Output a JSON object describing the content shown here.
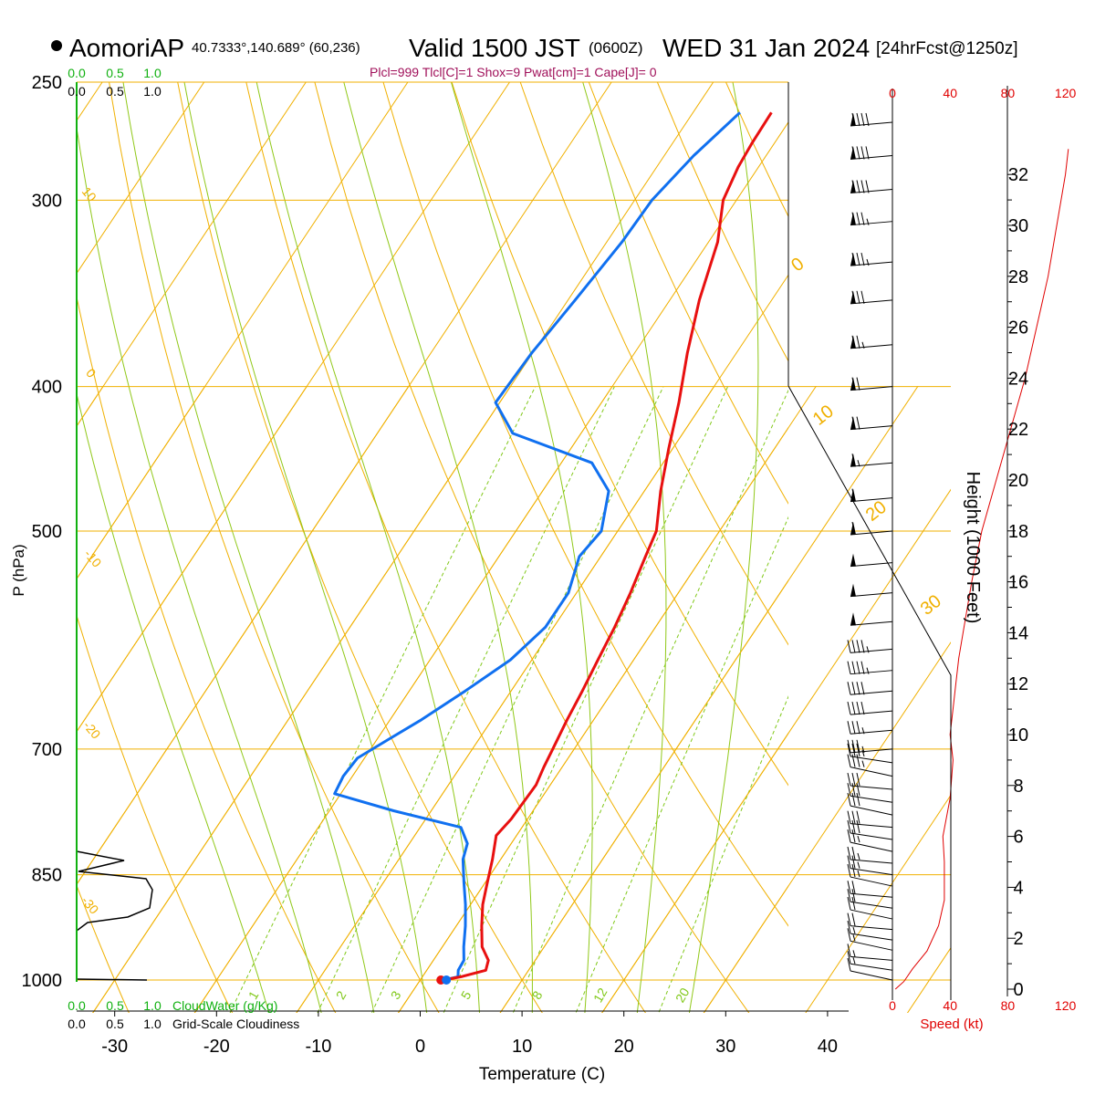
{
  "header": {
    "station": "AomoriAP",
    "coords": "40.7333°,140.689° (60,236)",
    "valid_label": "Valid 1500 JST",
    "valid_utc": "(0600Z)",
    "valid_date": "WED 31 Jan 2024",
    "forecast": "[24hrFcst@1250z]",
    "indices": "Plcl=999 Tlcl[C]=1 Shox=9 Pwat[cm]=1 Cape[J]= 0"
  },
  "colors": {
    "isotherm": "#f0b000",
    "dry_adiabat": "#f0b000",
    "moist_adiabat": "#90c818",
    "mixing_ratio": "#80c818",
    "temperature": "#e81010",
    "dewpoint": "#1070f0",
    "cloud_scale": "#10b010",
    "speed_scale": "#e00000"
  },
  "chart_data": {
    "type": "line",
    "title": "AomoriAP Valid 1500 JST (0600Z) WED 31 Jan 2024",
    "xlabel": "Temperature (C)",
    "ylabel": "P (hPa)",
    "y2label": "Height (1000 Feet)",
    "x_ticks": [
      "-30",
      "-20",
      "-10",
      "0",
      "10",
      "20",
      "30",
      "40"
    ],
    "p_ticks": [
      "250",
      "300",
      "400",
      "500",
      "700",
      "850",
      "1000"
    ],
    "height_ticks": [
      "0",
      "2",
      "4",
      "6",
      "8",
      "10",
      "12",
      "14",
      "16",
      "18",
      "20",
      "22",
      "24",
      "26",
      "28",
      "30",
      "32"
    ],
    "speed_ticks": [
      "0",
      "40",
      "80",
      "120"
    ],
    "speed_label": "Speed (kt)",
    "cloud_ticks": [
      "0.0",
      "0.5",
      "1.0"
    ],
    "cloudwater_label": "CloudWater (g/Kg)",
    "cloudiness_label": "Grid-Scale Cloudiness",
    "isotherm_labels": [
      "0",
      "10",
      "20",
      "30"
    ],
    "dry_adiabat_labels": [
      "10",
      "0",
      "-10",
      "-20",
      "-30"
    ],
    "mixing_ratio_labels": [
      "1",
      "2",
      "3",
      "5",
      "8",
      "12",
      "20"
    ],
    "temperature": {
      "name": "Temperature",
      "p": [
        1000,
        995,
        985,
        970,
        950,
        920,
        890,
        860,
        830,
        800,
        780,
        760,
        740,
        720,
        700,
        670,
        640,
        610,
        580,
        550,
        520,
        500,
        470,
        440,
        410,
        380,
        350,
        320,
        300,
        285,
        275,
        262
      ],
      "t": [
        2.3,
        3.8,
        5.8,
        5.4,
        3.9,
        2.5,
        1.2,
        0.2,
        -0.8,
        -2.0,
        -1.6,
        -1.5,
        -1.4,
        -1.8,
        -2.1,
        -2.6,
        -3.0,
        -3.5,
        -4.0,
        -4.7,
        -5.6,
        -6.2,
        -8.4,
        -10.4,
        -12.4,
        -14.8,
        -17.1,
        -19.1,
        -21.3,
        -22.0,
        -22.2,
        -22.3
      ]
    },
    "dewpoint": {
      "name": "Dewpoint",
      "p": [
        1000,
        995,
        985,
        970,
        950,
        920,
        890,
        860,
        830,
        810,
        790,
        770,
        750,
        730,
        710,
        690,
        670,
        640,
        610,
        580,
        550,
        520,
        500,
        470,
        450,
        430,
        410,
        380,
        350,
        320,
        300,
        280,
        262
      ],
      "t": [
        2.3,
        3.5,
        3.1,
        3.0,
        2.1,
        0.9,
        -0.5,
        -2.1,
        -3.7,
        -4.3,
        -6.0,
        -13.7,
        -20.6,
        -20.9,
        -20.7,
        -18.9,
        -17.0,
        -14.5,
        -12.1,
        -10.8,
        -10.8,
        -12.1,
        -11.6,
        -13.5,
        -17.0,
        -26.7,
        -30.4,
        -30.1,
        -29.3,
        -28.5,
        -28.3,
        -27.1,
        -25.4
      ]
    },
    "wind_barbs_p": [
      1000,
      985,
      970,
      955,
      940,
      925,
      910,
      895,
      880,
      865,
      850,
      835,
      820,
      805,
      790,
      775,
      760,
      745,
      730,
      715,
      700,
      680,
      660,
      640,
      620,
      600,
      575,
      550,
      525,
      500,
      475,
      450,
      425,
      400,
      375,
      350,
      330,
      310,
      295,
      280,
      266
    ],
    "wind_barbs_kt": [
      10,
      15,
      15,
      15,
      15,
      20,
      20,
      20,
      20,
      25,
      25,
      25,
      25,
      30,
      30,
      30,
      30,
      30,
      35,
      35,
      35,
      35,
      40,
      40,
      45,
      45,
      50,
      55,
      55,
      60,
      60,
      65,
      70,
      70,
      75,
      80,
      85,
      85,
      90,
      90,
      90
    ],
    "speed_profile": {
      "height_kft": [
        0,
        0.3,
        0.8,
        1.5,
        2.5,
        3.5,
        5,
        6,
        7.5,
        9,
        10,
        11,
        12,
        13,
        14,
        16,
        18,
        20,
        22,
        24,
        26,
        28,
        30,
        32,
        33
      ],
      "kt": [
        2,
        8,
        14,
        24,
        32,
        36,
        36,
        35,
        40,
        42,
        40,
        42,
        44,
        46,
        49,
        55,
        62,
        72,
        82,
        92,
        100,
        108,
        114,
        120,
        122
      ]
    }
  }
}
